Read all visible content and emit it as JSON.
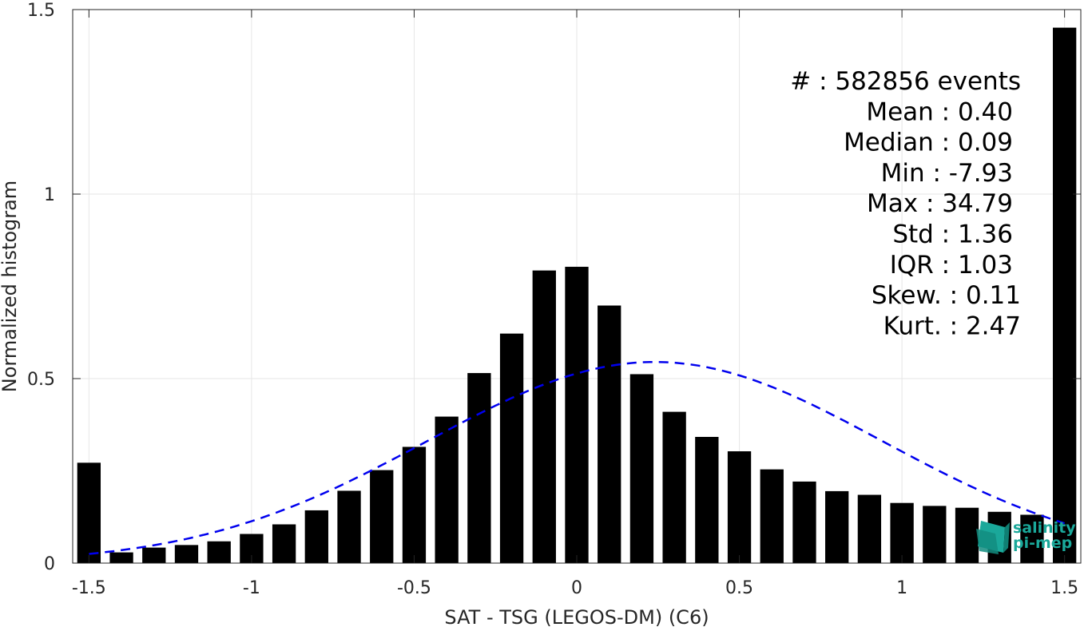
{
  "chart_data": {
    "type": "bar",
    "xlabel": "SAT - TSG (LEGOS-DM) (C6)",
    "ylabel": "Normalized histogram",
    "xlim": [
      -1.55,
      1.55
    ],
    "ylim": [
      0,
      1.5
    ],
    "xticks": [
      -1.5,
      -1,
      -0.5,
      0,
      0.5,
      1,
      1.5
    ],
    "xtick_labels": [
      "-1.5",
      "-1",
      "-0.5",
      "0",
      "0.5",
      "1",
      "1.5"
    ],
    "yticks": [
      0,
      0.5,
      1,
      1.5
    ],
    "ytick_labels": [
      "0",
      "0.5",
      "1",
      "1.5"
    ],
    "grid": true,
    "bar_color": "#000000",
    "bins": {
      "x": [
        -1.5,
        -1.4,
        -1.3,
        -1.2,
        -1.1,
        -1.0,
        -0.9,
        -0.8,
        -0.7,
        -0.6,
        -0.5,
        -0.4,
        -0.3,
        -0.2,
        -0.1,
        0.0,
        0.1,
        0.2,
        0.3,
        0.4,
        0.5,
        0.6,
        0.7,
        0.8,
        0.9,
        1.0,
        1.1,
        1.2,
        1.3,
        1.4,
        1.5
      ],
      "values": [
        0.272,
        0.029,
        0.042,
        0.049,
        0.059,
        0.079,
        0.105,
        0.143,
        0.196,
        0.252,
        0.315,
        0.397,
        0.515,
        0.622,
        0.793,
        0.803,
        0.698,
        0.512,
        0.41,
        0.342,
        0.303,
        0.254,
        0.221,
        0.195,
        0.185,
        0.163,
        0.155,
        0.15,
        0.139,
        0.131,
        1.451
      ]
    },
    "normal_fit": {
      "style": "dashed",
      "color": "#0000ee",
      "mean": 0.24,
      "peak": 0.545,
      "x_range": [
        -1.5,
        1.5
      ],
      "sigma": 0.7,
      "baseline": 0.0
    },
    "stats": [
      "#  : 582856 events",
      "Mean : 0.40",
      "Median : 0.09",
      "Min : -7.93",
      "Max : 34.79",
      "Std : 1.36",
      "IQR : 1.03",
      "Skew. : 0.11",
      "Kurt. : 2.47"
    ],
    "stats_placement": "top-right"
  },
  "logo": {
    "line1": "salinity",
    "line2": "pi-mep",
    "color": "#1aa89a"
  }
}
